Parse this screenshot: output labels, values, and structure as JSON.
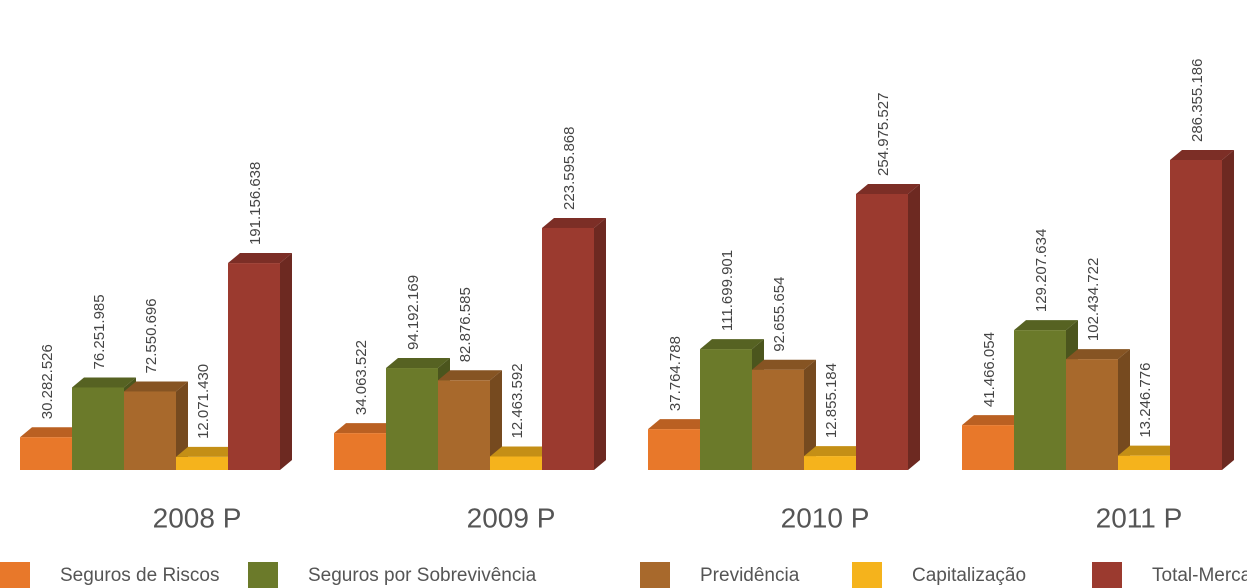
{
  "chart_data": {
    "type": "bar3d",
    "categories": [
      "2008 P",
      "2009 P",
      "2010 P",
      "2011 P"
    ],
    "series": [
      {
        "name": "Seguros de Riscos",
        "color": "#e8782a",
        "values": [
          30282526,
          34063522,
          37764788,
          41466054
        ],
        "value_labels": [
          "30.282.526",
          "34.063.522",
          "37.764.788",
          "41.466.054"
        ]
      },
      {
        "name": "Seguros por Sobrevivência",
        "color": "#6b7a2a",
        "values": [
          76251985,
          94192169,
          111699901,
          129207634
        ],
        "value_labels": [
          "76.251.985",
          "94.192.169",
          "111.699.901",
          "129.207.634"
        ]
      },
      {
        "name": "Previdência",
        "color": "#a8692c",
        "values": [
          72550696,
          82876585,
          92655654,
          102434722
        ],
        "value_labels": [
          "72.550.696",
          "82.876.585",
          "92.655.654",
          "102.434.722"
        ]
      },
      {
        "name": "Capitalização",
        "color": "#f5b31c",
        "values": [
          12071430,
          12463592,
          12855184,
          13246776
        ],
        "value_labels": [
          "12.071.430",
          "12.463.592",
          "12.855.184",
          "13.246.776"
        ]
      },
      {
        "name": "Total-Mercado",
        "color": "#9b3a2f",
        "values": [
          191156638,
          223595868,
          254975527,
          286355186
        ],
        "value_labels": [
          "191.156.638",
          "223.595.868",
          "254.975.527",
          "286.355.186"
        ]
      }
    ]
  }
}
